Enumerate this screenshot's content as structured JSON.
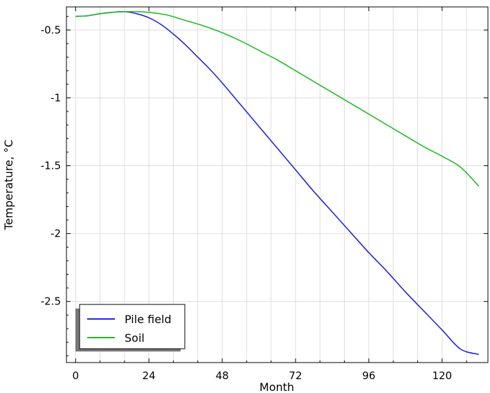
{
  "chart_data": {
    "type": "line",
    "xlabel": "Month",
    "ylabel": "Temperature, °C",
    "xlim": [
      -3,
      135
    ],
    "ylim": [
      -2.95,
      -0.33
    ],
    "xticks": [
      0,
      24,
      48,
      72,
      96,
      120
    ],
    "yticks": [
      -0.5,
      -1,
      -1.5,
      -2,
      -2.5
    ],
    "xtick_labels": [
      "0",
      "24",
      "48",
      "72",
      "96",
      "120"
    ],
    "ytick_labels": [
      "-0.5",
      "-1",
      "-1.5",
      "-2",
      "-2.5"
    ],
    "grid": true,
    "legend_position": "bottom-left",
    "series": [
      {
        "name": "Pile field",
        "color": "#2222dd",
        "x": [
          0,
          4,
          8,
          12,
          16,
          20,
          24,
          28,
          32,
          36,
          40,
          44,
          48,
          54,
          60,
          66,
          72,
          78,
          84,
          90,
          96,
          102,
          108,
          114,
          120,
          126,
          132
        ],
        "y": [
          -0.4,
          -0.395,
          -0.38,
          -0.37,
          -0.365,
          -0.38,
          -0.41,
          -0.46,
          -0.53,
          -0.61,
          -0.7,
          -0.79,
          -0.89,
          -1.05,
          -1.21,
          -1.37,
          -1.53,
          -1.69,
          -1.84,
          -1.99,
          -2.14,
          -2.28,
          -2.43,
          -2.57,
          -2.71,
          -2.85,
          -2.89
        ]
      },
      {
        "name": "Soil",
        "color": "#22bb22",
        "x": [
          0,
          4,
          8,
          12,
          16,
          20,
          24,
          30,
          36,
          42,
          48,
          54,
          60,
          66,
          72,
          78,
          84,
          90,
          96,
          102,
          108,
          114,
          120,
          126,
          132
        ],
        "y": [
          -0.4,
          -0.395,
          -0.38,
          -0.37,
          -0.365,
          -0.365,
          -0.37,
          -0.39,
          -0.43,
          -0.47,
          -0.52,
          -0.58,
          -0.65,
          -0.72,
          -0.8,
          -0.88,
          -0.96,
          -1.04,
          -1.12,
          -1.2,
          -1.28,
          -1.36,
          -1.43,
          -1.51,
          -1.65
        ]
      }
    ]
  }
}
